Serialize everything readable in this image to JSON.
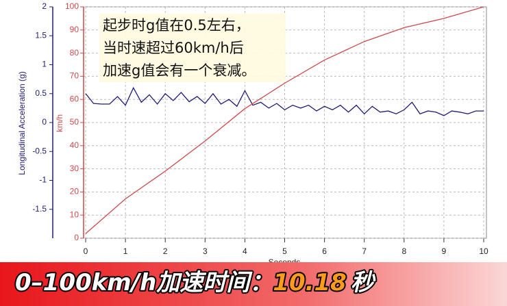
{
  "chart_data": {
    "type": "line",
    "x_label": "Seconds",
    "y_label": "Longitudinal Acceleration (g)",
    "y2_label": "km/h",
    "annotation": [
      "起步时g值在0.5左右，",
      "当时速超过60km/h后",
      "加速g值会有一个衰减。"
    ],
    "xlim": [
      0,
      10
    ],
    "xticks": [
      0,
      1,
      2,
      3,
      4,
      5,
      6,
      7,
      8,
      9,
      10
    ],
    "ylim": [
      -2,
      2
    ],
    "yticks": [
      2,
      1.5,
      1,
      0.5,
      0,
      -0.5,
      -1,
      -1.5
    ],
    "y2lim": [
      0,
      100
    ],
    "y2ticks": [
      0,
      10,
      20,
      30,
      40,
      50,
      60,
      70,
      80,
      90,
      100
    ],
    "grid": true,
    "series": [
      {
        "color": "#1c1c78",
        "x": [
          0,
          0.2,
          0.4,
          0.6,
          0.8,
          1,
          1.2,
          1.4,
          1.6,
          1.8,
          2,
          2.2,
          2.4,
          2.6,
          2.8,
          3,
          3.2,
          3.4,
          3.6,
          3.8,
          4,
          4.2,
          4.4,
          4.6,
          4.8,
          5,
          5.2,
          5.4,
          5.6,
          5.8,
          6,
          6.2,
          6.4,
          6.6,
          6.8,
          7,
          7.2,
          7.4,
          7.6,
          7.8,
          8,
          8.2,
          8.4,
          8.6,
          8.8,
          9,
          9.2,
          9.4,
          9.6,
          9.8,
          10
        ],
        "values": [
          0.5,
          0.33,
          0.32,
          0.32,
          0.45,
          0.3,
          0.6,
          0.35,
          0.48,
          0.32,
          0.5,
          0.38,
          0.52,
          0.36,
          0.45,
          0.33,
          0.5,
          0.32,
          0.4,
          0.28,
          0.55,
          0.3,
          0.35,
          0.25,
          0.33,
          0.22,
          0.3,
          0.25,
          0.3,
          0.2,
          0.28,
          0.22,
          0.3,
          0.18,
          0.3,
          0.15,
          0.28,
          0.18,
          0.2,
          0.15,
          0.22,
          0.35,
          0.15,
          0.2,
          0.18,
          0.12,
          0.2,
          0.18,
          0.15,
          0.2,
          0.2
        ]
      },
      {
        "color": "#d04848",
        "axis": "y2",
        "x": [
          0,
          1,
          2,
          3,
          4,
          5,
          6,
          7,
          8,
          9,
          10
        ],
        "values": [
          2,
          17,
          29,
          42,
          56,
          67,
          77,
          85,
          91,
          95,
          100
        ]
      }
    ]
  },
  "banner": {
    "label": "0–100km/h加速时间：",
    "value": "10.18",
    "unit": "秒"
  }
}
